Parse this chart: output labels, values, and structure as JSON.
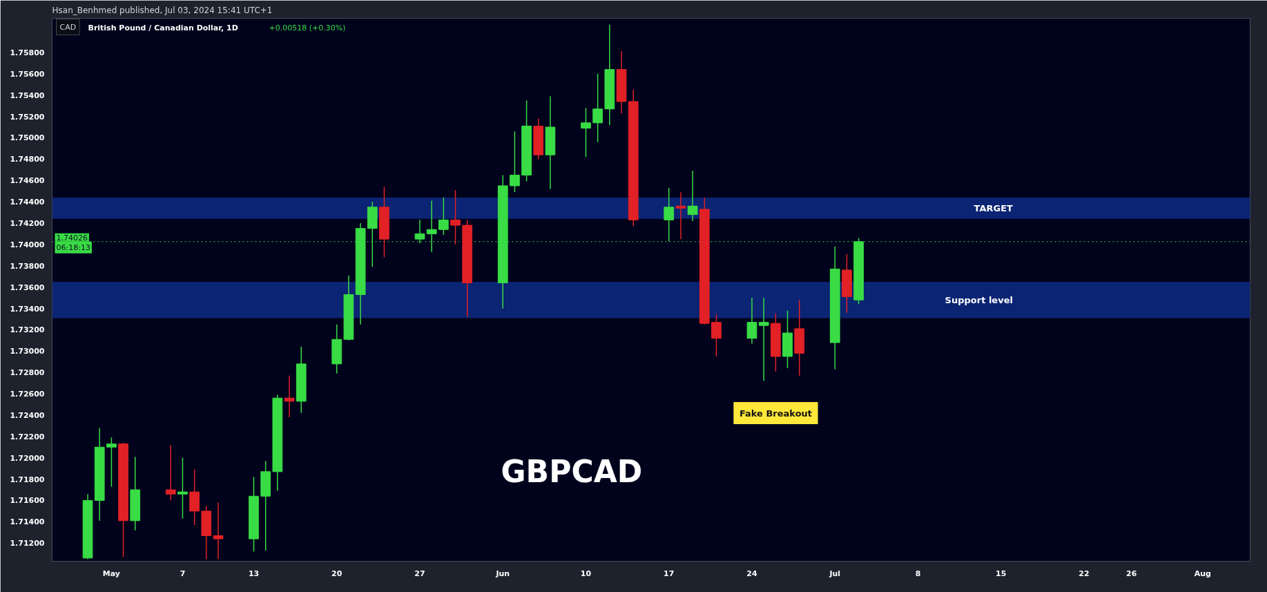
{
  "chart_data": {
    "type": "candlestick",
    "title": "British Pound / Canadian Dollar, 1D",
    "subtitle": "+0.00518 (+0.30%)",
    "x": [
      "2024-04-29",
      "2024-04-30",
      "2024-05-01",
      "2024-05-02",
      "2024-05-03",
      "2024-05-06",
      "2024-05-07",
      "2024-05-08",
      "2024-05-09",
      "2024-05-10",
      "2024-05-13",
      "2024-05-14",
      "2024-05-15",
      "2024-05-16",
      "2024-05-17",
      "2024-05-20",
      "2024-05-21",
      "2024-05-22",
      "2024-05-23",
      "2024-05-24",
      "2024-05-27",
      "2024-05-28",
      "2024-05-29",
      "2024-05-30",
      "2024-05-31",
      "2024-06-03",
      "2024-06-04",
      "2024-06-05",
      "2024-06-06",
      "2024-06-07",
      "2024-06-10",
      "2024-06-11",
      "2024-06-12",
      "2024-06-13",
      "2024-06-14",
      "2024-06-17",
      "2024-06-18",
      "2024-06-19",
      "2024-06-20",
      "2024-06-21",
      "2024-06-24",
      "2024-06-25",
      "2024-06-26",
      "2024-06-27",
      "2024-06-28",
      "2024-07-01",
      "2024-07-02",
      "2024-07-03"
    ],
    "ohlc": [
      [
        1.7106,
        1.7166,
        1.7105,
        1.716
      ],
      [
        1.716,
        1.7228,
        1.7141,
        1.721
      ],
      [
        1.721,
        1.7219,
        1.7173,
        1.7213
      ],
      [
        1.7213,
        1.7214,
        1.7107,
        1.7141
      ],
      [
        1.7141,
        1.7201,
        1.7132,
        1.717
      ],
      [
        1.717,
        1.7212,
        1.716,
        1.7166
      ],
      [
        1.7166,
        1.72,
        1.7143,
        1.7168
      ],
      [
        1.7168,
        1.7189,
        1.7137,
        1.715
      ],
      [
        1.715,
        1.7155,
        1.7105,
        1.7127
      ],
      [
        1.7127,
        1.7158,
        1.7105,
        1.7124
      ],
      [
        1.7124,
        1.7182,
        1.7112,
        1.7164
      ],
      [
        1.7164,
        1.7197,
        1.7113,
        1.7187
      ],
      [
        1.7187,
        1.7259,
        1.7169,
        1.7256
      ],
      [
        1.7256,
        1.7277,
        1.7238,
        1.7253
      ],
      [
        1.7253,
        1.7304,
        1.7242,
        1.7288
      ],
      [
        1.7288,
        1.7325,
        1.7279,
        1.7311
      ],
      [
        1.7311,
        1.7371,
        1.731,
        1.7353
      ],
      [
        1.7353,
        1.742,
        1.7325,
        1.7415
      ],
      [
        1.7415,
        1.744,
        1.7379,
        1.7435
      ],
      [
        1.7435,
        1.7454,
        1.7388,
        1.7405
      ],
      [
        1.7405,
        1.7423,
        1.7401,
        1.741
      ],
      [
        1.741,
        1.7441,
        1.7393,
        1.7414
      ],
      [
        1.7414,
        1.7444,
        1.7409,
        1.7423
      ],
      [
        1.7423,
        1.7451,
        1.74,
        1.7418
      ],
      [
        1.7418,
        1.7423,
        1.7332,
        1.7364
      ],
      [
        1.7364,
        1.7465,
        1.734,
        1.7455
      ],
      [
        1.7455,
        1.7506,
        1.7449,
        1.7465
      ],
      [
        1.7465,
        1.7535,
        1.7459,
        1.7511
      ],
      [
        1.7511,
        1.7518,
        1.748,
        1.7484
      ],
      [
        1.7484,
        1.7539,
        1.7452,
        1.751
      ],
      [
        1.7509,
        1.7528,
        1.7482,
        1.7514
      ],
      [
        1.7514,
        1.756,
        1.7496,
        1.7527
      ],
      [
        1.7527,
        1.7606,
        1.7512,
        1.7564
      ],
      [
        1.7564,
        1.7581,
        1.7523,
        1.7534
      ],
      [
        1.7534,
        1.7545,
        1.7417,
        1.7423
      ],
      [
        1.7423,
        1.7453,
        1.7403,
        1.7435
      ],
      [
        1.7436,
        1.7449,
        1.7405,
        1.7434
      ],
      [
        1.7428,
        1.7469,
        1.7422,
        1.7436
      ],
      [
        1.7433,
        1.7444,
        1.7325,
        1.7326
      ],
      [
        1.7327,
        1.7334,
        1.7295,
        1.7312
      ],
      [
        1.7312,
        1.735,
        1.7307,
        1.7327
      ],
      [
        1.7324,
        1.735,
        1.7272,
        1.7327
      ],
      [
        1.7326,
        1.7335,
        1.7281,
        1.7295
      ],
      [
        1.7295,
        1.7338,
        1.7284,
        1.7317
      ],
      [
        1.7321,
        1.7348,
        1.7277,
        1.7298
      ],
      [
        1.7308,
        1.7398,
        1.7283,
        1.7377
      ],
      [
        1.7376,
        1.7391,
        1.7336,
        1.7351
      ],
      [
        1.7348,
        1.7406,
        1.7344,
        1.74026
      ]
    ],
    "colors": [
      "#39dc45",
      "#39dc45",
      "#39dc45",
      "#e12125",
      "#39dc45",
      "#e12125",
      "#39dc45",
      "#e12125",
      "#e12125",
      "#e12125",
      "#39dc45",
      "#39dc45",
      "#39dc45",
      "#e12125",
      "#39dc45",
      "#39dc45",
      "#39dc45",
      "#39dc45",
      "#39dc45",
      "#e12125",
      "#39dc45",
      "#39dc45",
      "#39dc45",
      "#e12125",
      "#e12125",
      "#39dc45",
      "#39dc45",
      "#39dc45",
      "#e12125",
      "#39dc45",
      "#39dc45",
      "#39dc45",
      "#39dc45",
      "#e12125",
      "#e12125",
      "#39dc45",
      "#e12125",
      "#39dc45",
      "#e12125",
      "#e12125",
      "#39dc45",
      "#39dc45",
      "#e12125",
      "#39dc45",
      "#e12125",
      "#39dc45",
      "#e12125",
      "#39dc45"
    ],
    "xlim": [
      "2024-04-26",
      "2024-08-05"
    ],
    "xticks": [
      {
        "value": "2024-05-01",
        "label": "May"
      },
      {
        "value": "2024-05-07",
        "label": "7"
      },
      {
        "value": "2024-05-13",
        "label": "13"
      },
      {
        "value": "2024-05-20",
        "label": "20"
      },
      {
        "value": "2024-05-27",
        "label": "27"
      },
      {
        "value": "2024-06-03",
        "label": "Jun"
      },
      {
        "value": "2024-06-10",
        "label": "10"
      },
      {
        "value": "2024-06-17",
        "label": "17"
      },
      {
        "value": "2024-06-24",
        "label": "24"
      },
      {
        "value": "2024-07-01",
        "label": "Jul"
      },
      {
        "value": "2024-07-08",
        "label": "8"
      },
      {
        "value": "2024-07-15",
        "label": "15"
      },
      {
        "value": "2024-07-22",
        "label": "22"
      },
      {
        "value": "2024-07-26",
        "label": "26"
      },
      {
        "value": "2024-08-01",
        "label": "Aug"
      }
    ],
    "ylim": [
      1.7103,
      1.7612
    ],
    "yticks": [
      {
        "value": 1.712,
        "label": "1.71200"
      },
      {
        "value": 1.714,
        "label": "1.71400"
      },
      {
        "value": 1.716,
        "label": "1.71600"
      },
      {
        "value": 1.718,
        "label": "1.71800"
      },
      {
        "value": 1.72,
        "label": "1.72000"
      },
      {
        "value": 1.722,
        "label": "1.72200"
      },
      {
        "value": 1.724,
        "label": "1.72400"
      },
      {
        "value": 1.726,
        "label": "1.72600"
      },
      {
        "value": 1.728,
        "label": "1.72800"
      },
      {
        "value": 1.73,
        "label": "1.73000"
      },
      {
        "value": 1.732,
        "label": "1.73200"
      },
      {
        "value": 1.734,
        "label": "1.73400"
      },
      {
        "value": 1.736,
        "label": "1.73600"
      },
      {
        "value": 1.738,
        "label": "1.73800"
      },
      {
        "value": 1.74,
        "label": "1.74000"
      },
      {
        "value": 1.742,
        "label": "1.74200"
      },
      {
        "value": 1.744,
        "label": "1.74400"
      },
      {
        "value": 1.746,
        "label": "1.74600"
      },
      {
        "value": 1.748,
        "label": "1.74800"
      },
      {
        "value": 1.75,
        "label": "1.75000"
      },
      {
        "value": 1.752,
        "label": "1.75200"
      },
      {
        "value": 1.754,
        "label": "1.75400"
      },
      {
        "value": 1.756,
        "label": "1.75600"
      },
      {
        "value": 1.758,
        "label": "1.75800"
      }
    ],
    "ref_lines": [
      {
        "axis": "y",
        "value": 1.74026,
        "label": "1.74026",
        "color": "#39dc45",
        "line_style": "dotted"
      }
    ],
    "bands": [
      {
        "axis": "y",
        "from": 1.7424,
        "to": 1.7444,
        "label": "TARGET",
        "color": "#0b2473"
      },
      {
        "axis": "y",
        "from": 1.7331,
        "to": 1.7365,
        "label": "Support level",
        "color": "#0b2473"
      }
    ],
    "annotations": [
      "Hsan_Benhmed published, Jul 03, 2024 15:41 UTC+1",
      "CAD",
      "06:18:13",
      "GBPCAD",
      "Fake Breakout"
    ]
  }
}
